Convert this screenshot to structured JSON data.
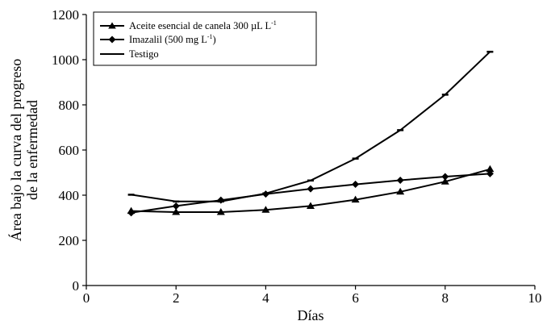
{
  "chart_data": {
    "type": "line",
    "title": "",
    "xlabel": "Días",
    "ylabel_line1": "Área bajo la curva del progreso",
    "ylabel_line2": "de la enfermedad",
    "xlim": [
      0,
      10
    ],
    "ylim": [
      0,
      1200
    ],
    "x_ticks": [
      "0",
      "2",
      "4",
      "6",
      "8",
      "10"
    ],
    "y_ticks": [
      "0",
      "200",
      "400",
      "600",
      "800",
      "1000",
      "1200"
    ],
    "grid": false,
    "legend_position": "top-left",
    "x": [
      1,
      2,
      3,
      4,
      5,
      6,
      7,
      8,
      9
    ],
    "series": [
      {
        "name_main": "Aceite esencial de canela 300 µL L",
        "name_sup": "-1",
        "marker": "triangle",
        "values": [
          330,
          325,
          325,
          335,
          352,
          380,
          415,
          460,
          515
        ]
      },
      {
        "name_main": "Imazalil (500 mg L",
        "name_sup": "-1",
        "name_end": ")",
        "marker": "diamond",
        "values": [
          322,
          352,
          378,
          405,
          428,
          448,
          466,
          482,
          495
        ]
      },
      {
        "name_main": "Testigo",
        "marker": "dash",
        "values": [
          402,
          372,
          372,
          408,
          465,
          562,
          688,
          845,
          1035
        ]
      }
    ]
  }
}
